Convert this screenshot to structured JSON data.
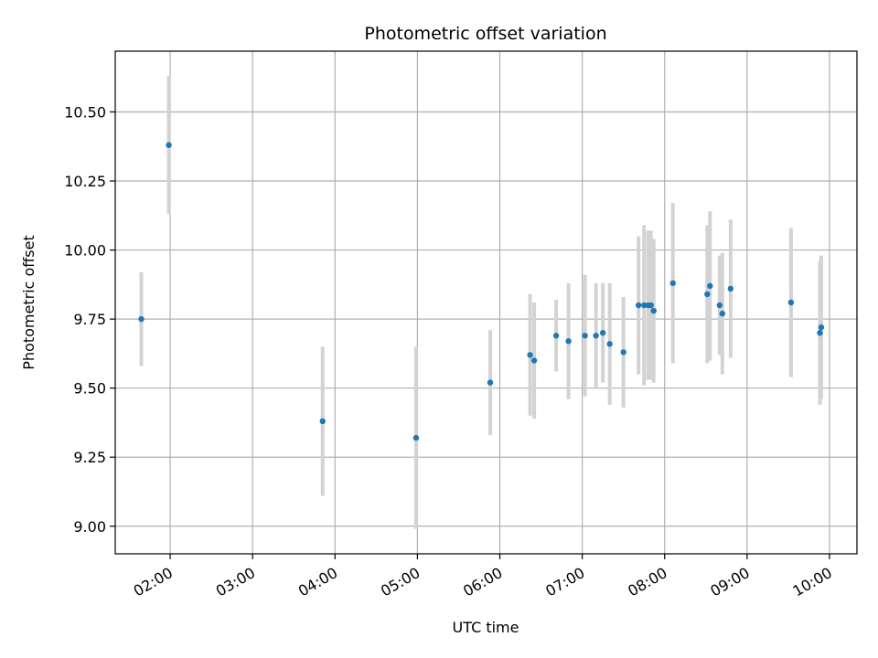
{
  "chart_data": {
    "type": "scatter",
    "title": "Photometric offset variation",
    "xlabel": "UTC time",
    "ylabel": "Photometric offset",
    "x_axis_type": "time",
    "xlim": [
      "01:20",
      "10:20"
    ],
    "ylim": [
      8.9,
      10.72
    ],
    "x_ticks": [
      "02:00",
      "03:00",
      "04:00",
      "05:00",
      "06:00",
      "07:00",
      "08:00",
      "09:00",
      "10:00"
    ],
    "y_ticks": [
      9.0,
      9.25,
      9.5,
      9.75,
      10.0,
      10.25,
      10.5
    ],
    "y_tick_labels": [
      "9.00",
      "9.25",
      "9.50",
      "9.75",
      "10.00",
      "10.25",
      "10.50"
    ],
    "grid": true,
    "marker_color": "#1f77b4",
    "errorbar_color": "#d3d3d3",
    "series": [
      {
        "points": [
          {
            "x": "01:39",
            "y": 9.75,
            "err": 0.17
          },
          {
            "x": "01:59",
            "y": 10.38,
            "err": 0.25
          },
          {
            "x": "03:51",
            "y": 9.38,
            "err": 0.27
          },
          {
            "x": "04:59",
            "y": 9.32,
            "err": 0.33
          },
          {
            "x": "05:53",
            "y": 9.52,
            "err": 0.19
          },
          {
            "x": "06:22",
            "y": 9.62,
            "err": 0.22
          },
          {
            "x": "06:25",
            "y": 9.6,
            "err": 0.21
          },
          {
            "x": "06:41",
            "y": 9.69,
            "err": 0.13
          },
          {
            "x": "06:50",
            "y": 9.67,
            "err": 0.21
          },
          {
            "x": "07:02",
            "y": 9.69,
            "err": 0.22
          },
          {
            "x": "07:10",
            "y": 9.69,
            "err": 0.19
          },
          {
            "x": "07:15",
            "y": 9.7,
            "err": 0.18
          },
          {
            "x": "07:20",
            "y": 9.66,
            "err": 0.22
          },
          {
            "x": "07:30",
            "y": 9.63,
            "err": 0.2
          },
          {
            "x": "07:41",
            "y": 9.8,
            "err": 0.25
          },
          {
            "x": "07:45",
            "y": 9.8,
            "err": 0.29
          },
          {
            "x": "07:48",
            "y": 9.8,
            "err": 0.27
          },
          {
            "x": "07:50",
            "y": 9.8,
            "err": 0.27
          },
          {
            "x": "07:52",
            "y": 9.78,
            "err": 0.26
          },
          {
            "x": "08:06",
            "y": 9.88,
            "err": 0.29
          },
          {
            "x": "08:31",
            "y": 9.84,
            "err": 0.25
          },
          {
            "x": "08:33",
            "y": 9.87,
            "err": 0.27
          },
          {
            "x": "08:40",
            "y": 9.8,
            "err": 0.18
          },
          {
            "x": "08:42",
            "y": 9.77,
            "err": 0.22
          },
          {
            "x": "08:48",
            "y": 9.86,
            "err": 0.25
          },
          {
            "x": "09:32",
            "y": 9.81,
            "err": 0.27
          },
          {
            "x": "09:53",
            "y": 9.7,
            "err": 0.26
          },
          {
            "x": "09:54",
            "y": 9.72,
            "err": 0.26
          }
        ]
      }
    ]
  }
}
